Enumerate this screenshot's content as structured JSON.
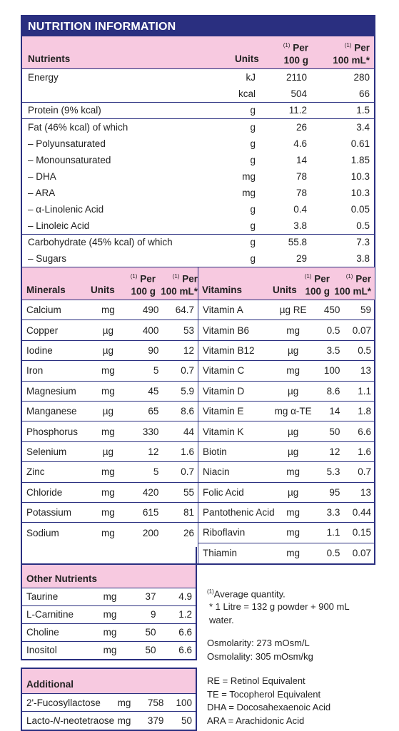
{
  "title": "NUTRITION INFORMATION",
  "main": {
    "headers": {
      "nutrients": "Nutrients",
      "units": "Units",
      "per100g_sup": "(1)",
      "per100g": "Per 100 g",
      "per100ml_sup": "(1)",
      "per100ml": "Per 100 mL*"
    },
    "groups": [
      [
        {
          "name": "Energy",
          "unit": "kJ",
          "g": "2110",
          "ml": "280"
        },
        {
          "name": "",
          "unit": "kcal",
          "g": "504",
          "ml": "66"
        }
      ],
      [
        {
          "name": "Protein (9% kcal)",
          "unit": "g",
          "g": "11.2",
          "ml": "1.5"
        }
      ],
      [
        {
          "name": "Fat (46% kcal) of which",
          "unit": "g",
          "g": "26",
          "ml": "3.4"
        },
        {
          "name": "– Polyunsaturated",
          "unit": "g",
          "g": "4.6",
          "ml": "0.61"
        },
        {
          "name": "– Monounsaturated",
          "unit": "g",
          "g": "14",
          "ml": "1.85"
        },
        {
          "name": "– DHA",
          "unit": "mg",
          "g": "78",
          "ml": "10.3"
        },
        {
          "name": "– ARA",
          "unit": "mg",
          "g": "78",
          "ml": "10.3"
        },
        {
          "name": "– α-Linolenic Acid",
          "unit": "g",
          "g": "0.4",
          "ml": "0.05"
        },
        {
          "name": "– Linoleic Acid",
          "unit": "g",
          "g": "3.8",
          "ml": "0.5"
        }
      ],
      [
        {
          "name": "Carbohydrate (45% kcal) of which",
          "unit": "g",
          "g": "55.8",
          "ml": "7.3"
        },
        {
          "name": "– Sugars",
          "unit": "g",
          "g": "29",
          "ml": "3.8"
        }
      ]
    ]
  },
  "minerals": {
    "headers": {
      "name": "Minerals",
      "units": "Units",
      "sup": "(1)",
      "per": "Per",
      "g": "100 g",
      "ml": "100 mL*"
    },
    "rows": [
      {
        "name": "Calcium",
        "unit": "mg",
        "g": "490",
        "ml": "64.7"
      },
      {
        "name": "Copper",
        "unit": "µg",
        "g": "400",
        "ml": "53"
      },
      {
        "name": "Iodine",
        "unit": "µg",
        "g": "90",
        "ml": "12"
      },
      {
        "name": "Iron",
        "unit": "mg",
        "g": "5",
        "ml": "0.7"
      },
      {
        "name": "Magnesium",
        "unit": "mg",
        "g": "45",
        "ml": "5.9"
      },
      {
        "name": "Manganese",
        "unit": "µg",
        "g": "65",
        "ml": "8.6"
      },
      {
        "name": "Phosphorus",
        "unit": "mg",
        "g": "330",
        "ml": "44"
      },
      {
        "name": "Selenium",
        "unit": "µg",
        "g": "12",
        "ml": "1.6"
      },
      {
        "name": "Zinc",
        "unit": "mg",
        "g": "5",
        "ml": "0.7"
      },
      {
        "name": "Chloride",
        "unit": "mg",
        "g": "420",
        "ml": "55"
      },
      {
        "name": "Potassium",
        "unit": "mg",
        "g": "615",
        "ml": "81"
      },
      {
        "name": "Sodium",
        "unit": "mg",
        "g": "200",
        "ml": "26"
      }
    ]
  },
  "vitamins": {
    "headers": {
      "name": "Vitamins",
      "units": "Units",
      "sup": "(1)",
      "per": "Per",
      "g": "100 g",
      "ml": "100 mL*"
    },
    "rows": [
      {
        "name": "Vitamin A",
        "unit": "µg RE",
        "g": "450",
        "ml": "59"
      },
      {
        "name": "Vitamin B6",
        "unit": "mg",
        "g": "0.5",
        "ml": "0.07"
      },
      {
        "name": "Vitamin B12",
        "unit": "µg",
        "g": "3.5",
        "ml": "0.5"
      },
      {
        "name": "Vitamin C",
        "unit": "mg",
        "g": "100",
        "ml": "13"
      },
      {
        "name": "Vitamin D",
        "unit": "µg",
        "g": "8.6",
        "ml": "1.1"
      },
      {
        "name": "Vitamin E",
        "unit": "mg α-TE",
        "g": "14",
        "ml": "1.8"
      },
      {
        "name": "Vitamin K",
        "unit": "µg",
        "g": "50",
        "ml": "6.6"
      },
      {
        "name": "Biotin",
        "unit": "µg",
        "g": "12",
        "ml": "1.6"
      },
      {
        "name": "Niacin",
        "unit": "mg",
        "g": "5.3",
        "ml": "0.7"
      },
      {
        "name": "Folic Acid",
        "unit": "µg",
        "g": "95",
        "ml": "13"
      },
      {
        "name": "Pantothenic Acid",
        "unit": "mg",
        "g": "3.3",
        "ml": "0.44"
      },
      {
        "name": "Riboflavin",
        "unit": "mg",
        "g": "1.1",
        "ml": "0.15"
      },
      {
        "name": "Thiamin",
        "unit": "mg",
        "g": "0.5",
        "ml": "0.07"
      }
    ]
  },
  "other": {
    "header": "Other Nutrients",
    "rows": [
      {
        "name": "Taurine",
        "unit": "mg",
        "g": "37",
        "ml": "4.9"
      },
      {
        "name": "L-Carnitine",
        "unit": "mg",
        "g": "9",
        "ml": "1.2"
      },
      {
        "name": "Choline",
        "unit": "mg",
        "g": "50",
        "ml": "6.6"
      },
      {
        "name": "Inositol",
        "unit": "mg",
        "g": "50",
        "ml": "6.6"
      }
    ]
  },
  "additional": {
    "header": "Additional",
    "rows": [
      {
        "name": "2'-Fucosyllactose",
        "unit": "mg",
        "g": "758",
        "ml": "100"
      },
      {
        "name_pre": "Lacto-",
        "name_it": "N",
        "name_post": "-neotetraose",
        "unit": "mg",
        "g": "379",
        "ml": "50"
      }
    ]
  },
  "notes": {
    "footnote_sup": "(1)",
    "footnote": "Average quantity.",
    "litre": "* 1 Litre = 132 g powder + 900 mL water.",
    "osmolarity": "Osmolarity: 273 mOsm/L",
    "osmolality": "Osmolality: 305 mOsm/kg",
    "abbr": [
      "RE = Retinol Equivalent",
      "TE = Tocopherol Equivalent",
      "DHA = Docosahexaenoic Acid",
      "ARA = Arachidonic Acid"
    ]
  },
  "colors": {
    "navy": "#2a2f80",
    "pink": "#f7c9e0"
  }
}
